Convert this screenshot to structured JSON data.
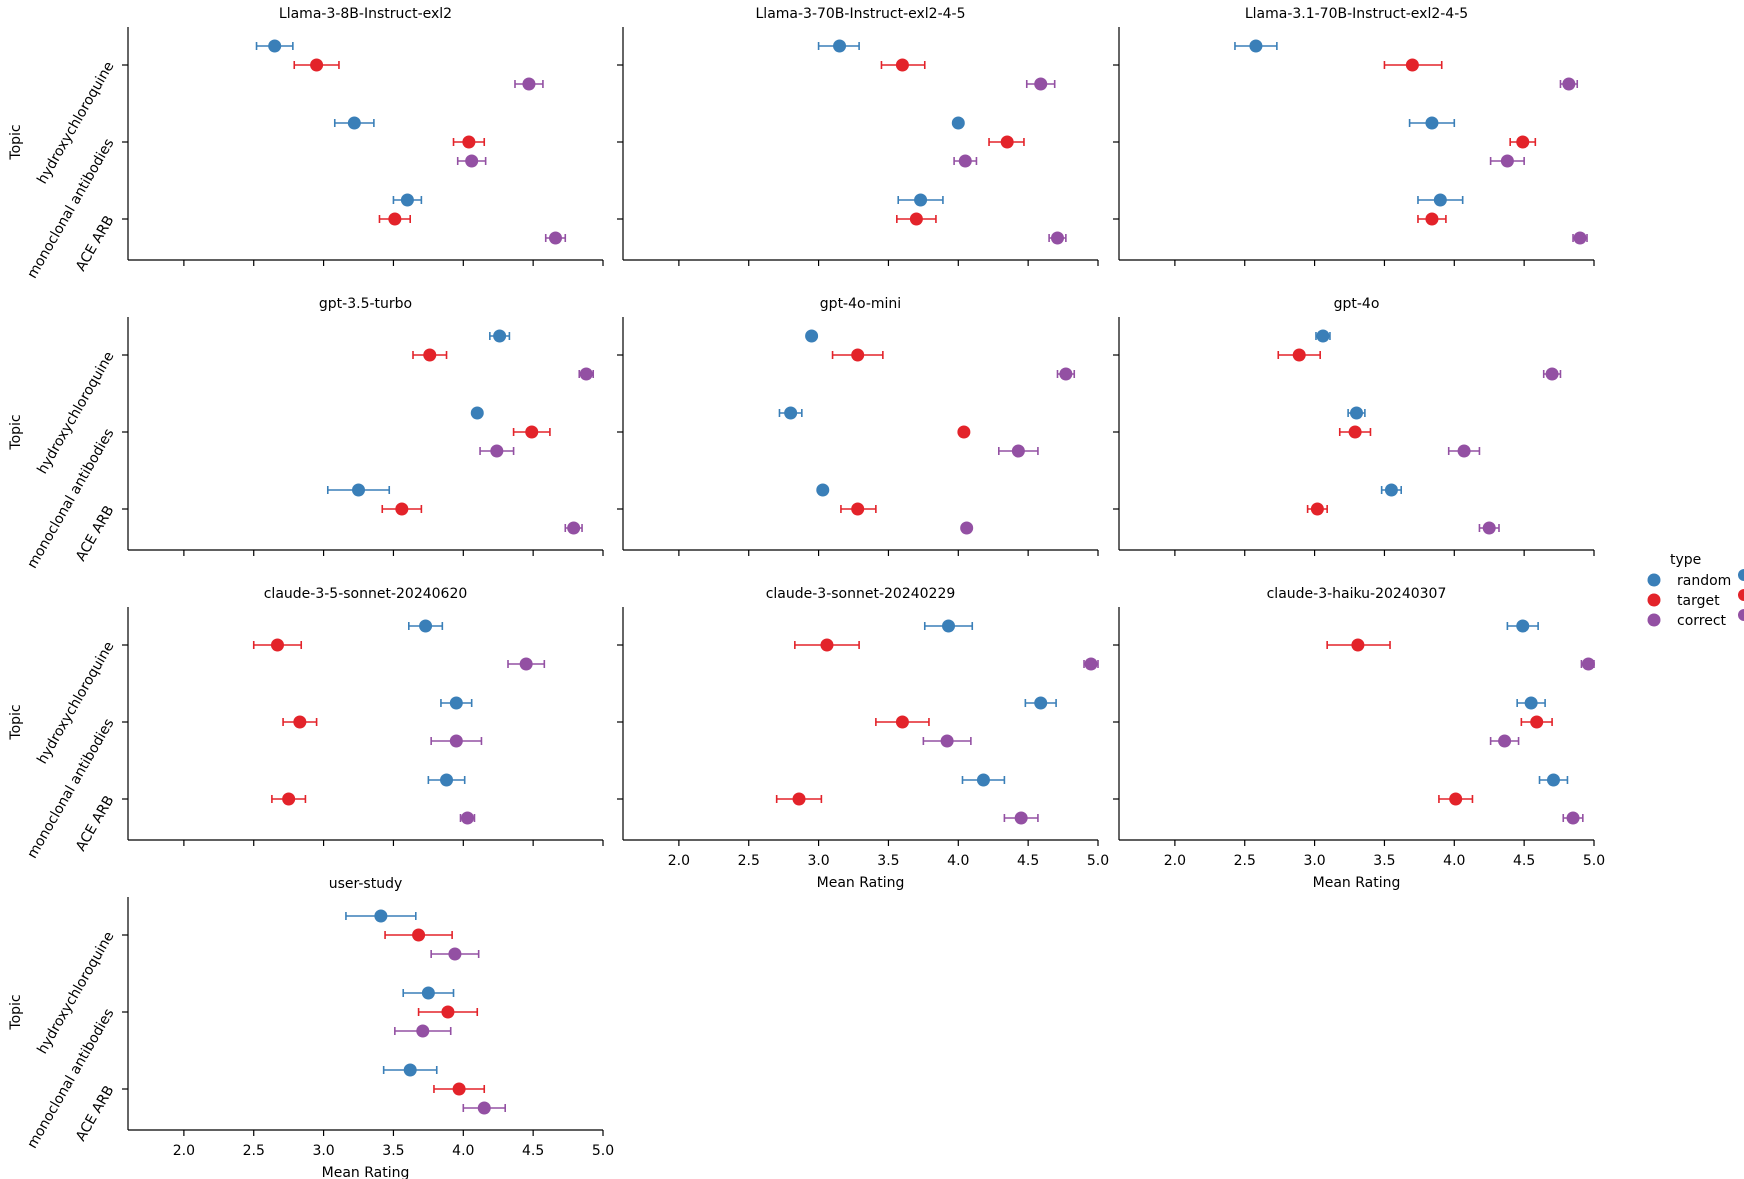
{
  "chart_data": {
    "type": "scatter",
    "figure_kind": "pointplot-facet-grid",
    "xlabel": "Mean Rating",
    "ylabel": "Topic",
    "xlim": [
      1.6,
      5.0
    ],
    "x_ticks": [
      2.0,
      2.5,
      3.0,
      3.5,
      4.0,
      4.5,
      5.0
    ],
    "x_tick_labels": [
      "2.0",
      "2.5",
      "3.0",
      "3.5",
      "4.0",
      "4.5",
      "5.0"
    ],
    "categories": [
      "hydroxychloroquine",
      "monoclonal antibodies",
      "ACE ARB"
    ],
    "legend": {
      "title": "type",
      "placement": "right",
      "entries": [
        {
          "name": "random",
          "color": "#3a7fb8"
        },
        {
          "name": "target",
          "color": "#e3232a"
        },
        {
          "name": "correct",
          "color": "#9350a3"
        }
      ]
    },
    "panels": [
      {
        "title": "Llama-3-8B-Instruct-exl2",
        "series": [
          {
            "name": "random",
            "values": [
              2.65,
              3.22,
              3.6
            ],
            "ci": [
              [
                2.52,
                2.78
              ],
              [
                3.08,
                3.36
              ],
              [
                3.5,
                3.7
              ]
            ]
          },
          {
            "name": "target",
            "values": [
              2.95,
              4.04,
              3.51
            ],
            "ci": [
              [
                2.79,
                3.11
              ],
              [
                3.93,
                4.15
              ],
              [
                3.4,
                3.62
              ]
            ]
          },
          {
            "name": "correct",
            "values": [
              4.47,
              4.06,
              4.66
            ],
            "ci": [
              [
                4.37,
                4.57
              ],
              [
                3.96,
                4.16
              ],
              [
                4.59,
                4.73
              ]
            ]
          }
        ]
      },
      {
        "title": "Llama-3-70B-Instruct-exl2-4-5",
        "series": [
          {
            "name": "random",
            "values": [
              3.15,
              4.0,
              3.73
            ],
            "ci": [
              [
                3.0,
                3.29
              ],
              [
                4.0,
                4.0
              ],
              [
                3.57,
                3.89
              ]
            ]
          },
          {
            "name": "target",
            "values": [
              3.6,
              4.35,
              3.7
            ],
            "ci": [
              [
                3.45,
                3.76
              ],
              [
                4.22,
                4.47
              ],
              [
                3.56,
                3.84
              ]
            ]
          },
          {
            "name": "correct",
            "values": [
              4.59,
              4.05,
              4.71
            ],
            "ci": [
              [
                4.49,
                4.69
              ],
              [
                3.97,
                4.13
              ],
              [
                4.65,
                4.77
              ]
            ]
          }
        ]
      },
      {
        "title": "Llama-3.1-70B-Instruct-exl2-4-5",
        "series": [
          {
            "name": "random",
            "values": [
              2.58,
              3.84,
              3.9
            ],
            "ci": [
              [
                2.43,
                2.73
              ],
              [
                3.68,
                4.0
              ],
              [
                3.74,
                4.06
              ]
            ]
          },
          {
            "name": "target",
            "values": [
              3.7,
              4.49,
              3.84
            ],
            "ci": [
              [
                3.5,
                3.91
              ],
              [
                4.4,
                4.58
              ],
              [
                3.74,
                3.94
              ]
            ]
          },
          {
            "name": "correct",
            "values": [
              4.82,
              4.38,
              4.9
            ],
            "ci": [
              [
                4.76,
                4.88
              ],
              [
                4.26,
                4.5
              ],
              [
                4.85,
                4.95
              ]
            ]
          }
        ]
      },
      {
        "title": "gpt-3.5-turbo",
        "series": [
          {
            "name": "random",
            "values": [
              4.26,
              4.1,
              3.25
            ],
            "ci": [
              [
                4.19,
                4.33
              ],
              [
                4.1,
                4.1
              ],
              [
                3.03,
                3.47
              ]
            ]
          },
          {
            "name": "target",
            "values": [
              3.76,
              4.49,
              3.56
            ],
            "ci": [
              [
                3.64,
                3.88
              ],
              [
                4.36,
                4.62
              ],
              [
                3.42,
                3.7
              ]
            ]
          },
          {
            "name": "correct",
            "values": [
              4.88,
              4.24,
              4.79
            ],
            "ci": [
              [
                4.83,
                4.93
              ],
              [
                4.12,
                4.36
              ],
              [
                4.73,
                4.85
              ]
            ]
          }
        ]
      },
      {
        "title": "gpt-4o-mini",
        "series": [
          {
            "name": "random",
            "values": [
              2.95,
              2.8,
              3.03
            ],
            "ci": [
              [
                2.95,
                2.95
              ],
              [
                2.72,
                2.88
              ],
              [
                3.03,
                3.03
              ]
            ]
          },
          {
            "name": "target",
            "values": [
              3.28,
              4.04,
              3.28
            ],
            "ci": [
              [
                3.1,
                3.46
              ],
              [
                4.04,
                4.04
              ],
              [
                3.16,
                3.41
              ]
            ]
          },
          {
            "name": "correct",
            "values": [
              4.77,
              4.43,
              4.06
            ],
            "ci": [
              [
                4.71,
                4.83
              ],
              [
                4.29,
                4.57
              ],
              [
                4.06,
                4.06
              ]
            ]
          }
        ]
      },
      {
        "title": "gpt-4o",
        "series": [
          {
            "name": "random",
            "values": [
              3.06,
              3.3,
              3.55
            ],
            "ci": [
              [
                3.01,
                3.11
              ],
              [
                3.24,
                3.36
              ],
              [
                3.48,
                3.62
              ]
            ]
          },
          {
            "name": "target",
            "values": [
              2.89,
              3.29,
              3.02
            ],
            "ci": [
              [
                2.74,
                3.04
              ],
              [
                3.18,
                3.4
              ],
              [
                2.95,
                3.09
              ]
            ]
          },
          {
            "name": "correct",
            "values": [
              4.7,
              4.07,
              4.25
            ],
            "ci": [
              [
                4.64,
                4.76
              ],
              [
                3.96,
                4.18
              ],
              [
                4.18,
                4.32
              ]
            ]
          }
        ]
      },
      {
        "title": "claude-3-5-sonnet-20240620",
        "series": [
          {
            "name": "random",
            "values": [
              3.73,
              3.95,
              3.88
            ],
            "ci": [
              [
                3.61,
                3.85
              ],
              [
                3.84,
                4.06
              ],
              [
                3.75,
                4.01
              ]
            ]
          },
          {
            "name": "target",
            "values": [
              2.67,
              2.83,
              2.75
            ],
            "ci": [
              [
                2.5,
                2.84
              ],
              [
                2.71,
                2.95
              ],
              [
                2.63,
                2.87
              ]
            ]
          },
          {
            "name": "correct",
            "values": [
              4.45,
              3.95,
              4.03
            ],
            "ci": [
              [
                4.32,
                4.58
              ],
              [
                3.77,
                4.13
              ],
              [
                3.98,
                4.08
              ]
            ]
          }
        ]
      },
      {
        "title": "claude-3-sonnet-20240229",
        "series": [
          {
            "name": "random",
            "values": [
              3.93,
              4.59,
              4.18
            ],
            "ci": [
              [
                3.76,
                4.1
              ],
              [
                4.48,
                4.7
              ],
              [
                4.03,
                4.33
              ]
            ]
          },
          {
            "name": "target",
            "values": [
              3.06,
              3.6,
              2.86
            ],
            "ci": [
              [
                2.83,
                3.29
              ],
              [
                3.41,
                3.79
              ],
              [
                2.7,
                3.02
              ]
            ]
          },
          {
            "name": "correct",
            "values": [
              4.95,
              3.92,
              4.45
            ],
            "ci": [
              [
                4.9,
                5.0
              ],
              [
                3.75,
                4.09
              ],
              [
                4.33,
                4.57
              ]
            ]
          }
        ]
      },
      {
        "title": "claude-3-haiku-20240307",
        "series": [
          {
            "name": "random",
            "values": [
              4.49,
              4.55,
              4.71
            ],
            "ci": [
              [
                4.38,
                4.6
              ],
              [
                4.45,
                4.65
              ],
              [
                4.61,
                4.81
              ]
            ]
          },
          {
            "name": "target",
            "values": [
              3.31,
              4.59,
              4.01
            ],
            "ci": [
              [
                3.09,
                3.54
              ],
              [
                4.48,
                4.7
              ],
              [
                3.89,
                4.13
              ]
            ]
          },
          {
            "name": "correct",
            "values": [
              4.96,
              4.36,
              4.85
            ],
            "ci": [
              [
                4.91,
                5.0
              ],
              [
                4.26,
                4.46
              ],
              [
                4.78,
                4.92
              ]
            ]
          }
        ]
      },
      {
        "title": "user-study",
        "series": [
          {
            "name": "random",
            "values": [
              3.41,
              3.75,
              3.62
            ],
            "ci": [
              [
                3.16,
                3.66
              ],
              [
                3.57,
                3.93
              ],
              [
                3.43,
                3.81
              ]
            ]
          },
          {
            "name": "target",
            "values": [
              3.68,
              3.89,
              3.97
            ],
            "ci": [
              [
                3.44,
                3.92
              ],
              [
                3.68,
                4.1
              ],
              [
                3.79,
                4.15
              ]
            ]
          },
          {
            "name": "correct",
            "values": [
              3.94,
              3.71,
              4.15
            ],
            "ci": [
              [
                3.77,
                4.11
              ],
              [
                3.51,
                3.91
              ],
              [
                4.0,
                4.3
              ]
            ]
          }
        ]
      }
    ]
  }
}
